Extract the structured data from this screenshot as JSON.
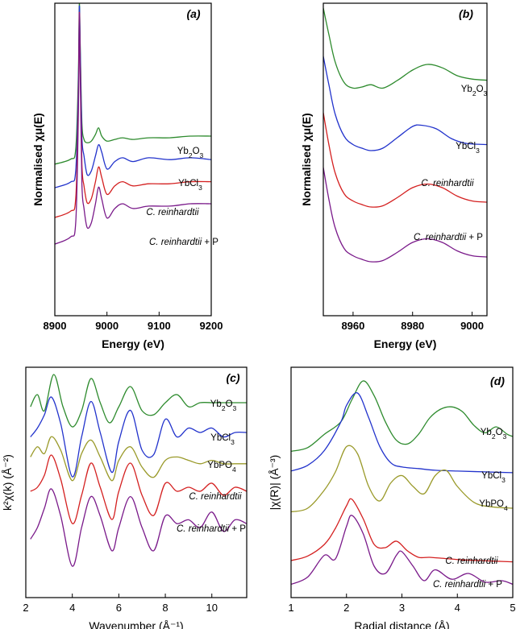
{
  "colors": {
    "Yb2O3": "#2e8b2e",
    "YbCl3": "#2233cc",
    "YbPO4": "#9a9a2a",
    "C. reinhardtii": "#d42020",
    "C. reinhardtii + P": "#7a1a8a"
  },
  "chart_data": [
    {
      "panel": "(a)",
      "type": "line",
      "xlabel": "Energy (eV)",
      "ylabel": "Normalised χμ(E)",
      "xlim": [
        8900,
        9200
      ],
      "xticks": [
        "8900",
        "9000",
        "9100",
        "9200"
      ],
      "series": [
        {
          "name": "Yb2O3",
          "x": [
            8900,
            8930,
            8940,
            8945,
            8947,
            8949,
            8952,
            8956,
            8962,
            8970,
            8978,
            8984,
            8990,
            9000,
            9015,
            9030,
            9050,
            9080,
            9120,
            9160,
            9200
          ],
          "y": [
            0.03,
            0.06,
            0.12,
            0.55,
            1.0,
            0.7,
            0.28,
            0.18,
            0.16,
            0.17,
            0.21,
            0.25,
            0.2,
            0.17,
            0.18,
            0.19,
            0.18,
            0.19,
            0.19,
            0.2,
            0.2
          ]
        },
        {
          "name": "YbCl3",
          "x": [
            8900,
            8930,
            8940,
            8945,
            8947,
            8949,
            8952,
            8956,
            8962,
            8970,
            8978,
            8984,
            8990,
            9000,
            9015,
            9030,
            9050,
            9080,
            9120,
            9160,
            9200
          ],
          "y": [
            0.03,
            0.06,
            0.12,
            0.55,
            1.0,
            0.72,
            0.3,
            0.2,
            0.1,
            0.12,
            0.2,
            0.26,
            0.22,
            0.13,
            0.17,
            0.19,
            0.17,
            0.19,
            0.18,
            0.19,
            0.18
          ]
        },
        {
          "name": "C. reinhardtii",
          "x": [
            8900,
            8930,
            8940,
            8945,
            8947,
            8949,
            8952,
            8956,
            8962,
            8970,
            8978,
            8984,
            8990,
            9000,
            9015,
            9030,
            9050,
            9080,
            9120,
            9160,
            9200
          ],
          "y": [
            0.03,
            0.06,
            0.12,
            0.55,
            1.0,
            0.7,
            0.28,
            0.18,
            0.1,
            0.12,
            0.2,
            0.27,
            0.22,
            0.14,
            0.18,
            0.2,
            0.18,
            0.19,
            0.19,
            0.2,
            0.2
          ]
        },
        {
          "name": "C. reinhardtii + P",
          "x": [
            8900,
            8930,
            8940,
            8945,
            8947,
            8949,
            8952,
            8956,
            8962,
            8970,
            8978,
            8984,
            8990,
            9000,
            9015,
            9030,
            9050,
            9080,
            9120,
            9160,
            9200
          ],
          "y": [
            0.03,
            0.06,
            0.12,
            0.55,
            1.0,
            0.7,
            0.28,
            0.18,
            0.1,
            0.12,
            0.2,
            0.27,
            0.22,
            0.14,
            0.18,
            0.2,
            0.18,
            0.19,
            0.19,
            0.2,
            0.2
          ]
        }
      ]
    },
    {
      "panel": "(b)",
      "type": "line",
      "xlabel": "Energy (eV)",
      "ylabel": "Normalised χμ(E)",
      "xlim": [
        8950,
        9005
      ],
      "xticks": [
        "8960",
        "8980",
        "9000"
      ],
      "series": [
        {
          "name": "Yb2O3",
          "x": [
            8950,
            8952,
            8954,
            8957,
            8960,
            8963,
            8966,
            8970,
            8975,
            8980,
            8985,
            8990,
            8995,
            9000,
            9005
          ],
          "y": [
            1.0,
            0.75,
            0.52,
            0.34,
            0.29,
            0.3,
            0.32,
            0.29,
            0.36,
            0.45,
            0.5,
            0.47,
            0.4,
            0.37,
            0.36
          ]
        },
        {
          "name": "YbCl3",
          "x": [
            8950,
            8952,
            8954,
            8957,
            8960,
            8963,
            8966,
            8970,
            8975,
            8980,
            8983,
            8988,
            8993,
            8998,
            9005
          ],
          "y": [
            1.0,
            0.75,
            0.52,
            0.34,
            0.27,
            0.24,
            0.22,
            0.24,
            0.33,
            0.42,
            0.43,
            0.4,
            0.32,
            0.28,
            0.27
          ]
        },
        {
          "name": "C. reinhardtii",
          "x": [
            8950,
            8952,
            8954,
            8957,
            8960,
            8963,
            8966,
            8970,
            8975,
            8980,
            8985,
            8990,
            8995,
            9000,
            9005
          ],
          "y": [
            1.0,
            0.72,
            0.5,
            0.33,
            0.27,
            0.24,
            0.22,
            0.23,
            0.3,
            0.38,
            0.41,
            0.38,
            0.31,
            0.27,
            0.26
          ]
        },
        {
          "name": "C. reinhardtii + P",
          "x": [
            8950,
            8952,
            8954,
            8957,
            8960,
            8963,
            8966,
            8970,
            8975,
            8980,
            8985,
            8990,
            8995,
            9000,
            9005
          ],
          "y": [
            1.0,
            0.72,
            0.5,
            0.33,
            0.27,
            0.24,
            0.22,
            0.23,
            0.3,
            0.38,
            0.41,
            0.38,
            0.31,
            0.27,
            0.26
          ]
        }
      ]
    },
    {
      "panel": "(c)",
      "type": "line",
      "xlabel": "Wavenumber (Å⁻¹)",
      "ylabel": "k²χ(k) (Å⁻²)",
      "xlim": [
        2,
        11.5
      ],
      "xticks": [
        "2",
        "4",
        "6",
        "8",
        "10"
      ],
      "series": [
        {
          "name": "Yb2O3",
          "x": [
            2.2,
            2.5,
            2.8,
            3.2,
            3.6,
            4.0,
            4.4,
            4.8,
            5.2,
            5.6,
            6.0,
            6.5,
            7.0,
            7.5,
            8.0,
            8.5,
            9.0,
            9.5,
            10.0,
            10.5,
            11.0,
            11.5
          ],
          "y": [
            0.2,
            0.5,
            0.1,
            1.0,
            0.2,
            -0.3,
            0.1,
            0.9,
            0.3,
            -0.2,
            0.2,
            0.7,
            0.1,
            0.0,
            0.3,
            0.5,
            0.2,
            0.3,
            0.3,
            0.3,
            0.3,
            0.3
          ]
        },
        {
          "name": "YbCl3",
          "x": [
            2.2,
            2.5,
            2.8,
            3.1,
            3.5,
            4.0,
            4.4,
            4.8,
            5.2,
            5.7,
            6.0,
            6.5,
            7.0,
            7.5,
            8.0,
            8.5,
            9.0,
            9.5,
            10.0,
            10.5,
            11.0,
            11.5
          ],
          "y": [
            0.1,
            0.3,
            0.6,
            1.0,
            0.4,
            -0.8,
            0.1,
            0.9,
            0.2,
            -0.7,
            0.0,
            0.7,
            -0.2,
            -0.3,
            0.5,
            0.1,
            0.3,
            0.2,
            0.3,
            0.1,
            0.2,
            0.2
          ]
        },
        {
          "name": "YbPO4",
          "x": [
            2.2,
            2.5,
            2.8,
            3.1,
            3.5,
            4.0,
            4.4,
            4.8,
            5.2,
            5.7,
            6.0,
            6.5,
            7.0,
            7.5,
            8.0,
            8.5,
            9.0,
            9.5,
            10.0,
            10.5,
            11.0,
            11.5
          ],
          "y": [
            0.3,
            0.6,
            0.4,
            0.9,
            0.5,
            -0.4,
            0.4,
            0.8,
            0.3,
            -0.4,
            0.2,
            0.6,
            0.0,
            -0.3,
            0.2,
            0.3,
            0.2,
            0.1,
            0.2,
            0.1,
            0.1,
            0.1
          ]
        },
        {
          "name": "C. reinhardtii",
          "x": [
            2.2,
            2.5,
            2.8,
            3.1,
            3.5,
            4.0,
            4.4,
            4.8,
            5.2,
            5.7,
            6.0,
            6.5,
            7.0,
            7.5,
            8.0,
            8.5,
            9.0,
            9.5,
            10.0,
            10.5,
            11.0,
            11.5
          ],
          "y": [
            0.1,
            0.2,
            0.5,
            1.0,
            0.4,
            -0.7,
            0.0,
            0.8,
            0.2,
            -0.6,
            0.1,
            0.8,
            0.0,
            -0.5,
            0.3,
            0.1,
            0.2,
            0.1,
            0.3,
            0.0,
            0.2,
            0.1
          ]
        },
        {
          "name": "C. reinhardtii + P",
          "x": [
            2.2,
            2.5,
            2.8,
            3.1,
            3.5,
            4.0,
            4.4,
            4.8,
            5.2,
            5.7,
            6.0,
            6.5,
            7.0,
            7.5,
            8.0,
            8.5,
            9.0,
            9.5,
            10.0,
            10.5,
            11.0,
            11.5
          ],
          "y": [
            -0.3,
            0.0,
            0.5,
            1.0,
            0.3,
            -1.0,
            0.0,
            0.8,
            0.3,
            -0.6,
            0.0,
            0.8,
            0.0,
            -0.6,
            0.3,
            0.1,
            0.2,
            0.0,
            0.4,
            -0.1,
            0.2,
            0.1
          ]
        }
      ]
    },
    {
      "panel": "(d)",
      "type": "line",
      "xlabel": "Radial distance (Å)",
      "ylabel": "|χ(R)| (Å⁻³)",
      "xlim": [
        1,
        5
      ],
      "xticks": [
        "1",
        "2",
        "3",
        "4",
        "5"
      ],
      "series": [
        {
          "name": "Yb2O3",
          "x": [
            1.0,
            1.3,
            1.6,
            1.9,
            2.1,
            2.3,
            2.5,
            2.7,
            2.9,
            3.1,
            3.3,
            3.5,
            3.7,
            3.9,
            4.1,
            4.3,
            4.5,
            4.7,
            4.9,
            5.0
          ],
          "y": [
            0.05,
            0.1,
            0.28,
            0.45,
            0.75,
            1.0,
            0.8,
            0.45,
            0.2,
            0.15,
            0.28,
            0.5,
            0.62,
            0.65,
            0.58,
            0.4,
            0.3,
            0.38,
            0.28,
            0.25
          ]
        },
        {
          "name": "YbCl3",
          "x": [
            1.0,
            1.3,
            1.6,
            1.9,
            2.0,
            2.2,
            2.4,
            2.6,
            2.8,
            3.0,
            3.3,
            3.6,
            4.0,
            4.5,
            5.0
          ],
          "y": [
            0.05,
            0.12,
            0.3,
            0.65,
            0.85,
            1.0,
            0.7,
            0.35,
            0.15,
            0.1,
            0.08,
            0.06,
            0.05,
            0.04,
            0.03
          ]
        },
        {
          "name": "YbPO4",
          "x": [
            1.0,
            1.3,
            1.6,
            1.8,
            2.0,
            2.2,
            2.4,
            2.6,
            2.8,
            3.0,
            3.2,
            3.4,
            3.6,
            3.8,
            4.0,
            4.3,
            4.6,
            5.0
          ],
          "y": [
            0.05,
            0.1,
            0.35,
            0.6,
            0.95,
            0.85,
            0.4,
            0.2,
            0.45,
            0.55,
            0.4,
            0.3,
            0.55,
            0.62,
            0.4,
            0.18,
            0.12,
            0.1
          ]
        },
        {
          "name": "C. reinhardtii",
          "x": [
            1.0,
            1.3,
            1.6,
            1.8,
            2.0,
            2.1,
            2.3,
            2.5,
            2.7,
            2.9,
            3.1,
            3.3,
            3.5,
            3.8,
            4.1,
            4.4,
            4.7,
            5.0
          ],
          "y": [
            0.05,
            0.12,
            0.3,
            0.55,
            0.9,
            1.0,
            0.7,
            0.3,
            0.25,
            0.35,
            0.2,
            0.1,
            0.1,
            0.08,
            0.06,
            0.05,
            0.04,
            0.03
          ]
        },
        {
          "name": "C. reinhardtii + P",
          "x": [
            1.0,
            1.3,
            1.6,
            1.8,
            2.0,
            2.1,
            2.3,
            2.5,
            2.7,
            2.9,
            3.0,
            3.2,
            3.4,
            3.6,
            3.9,
            4.2,
            4.5,
            4.8,
            5.0
          ],
          "y": [
            0.05,
            0.15,
            0.45,
            0.4,
            0.85,
            1.0,
            0.75,
            0.3,
            0.2,
            0.45,
            0.5,
            0.3,
            0.1,
            0.25,
            0.12,
            0.2,
            0.08,
            0.1,
            0.05
          ]
        }
      ]
    }
  ]
}
